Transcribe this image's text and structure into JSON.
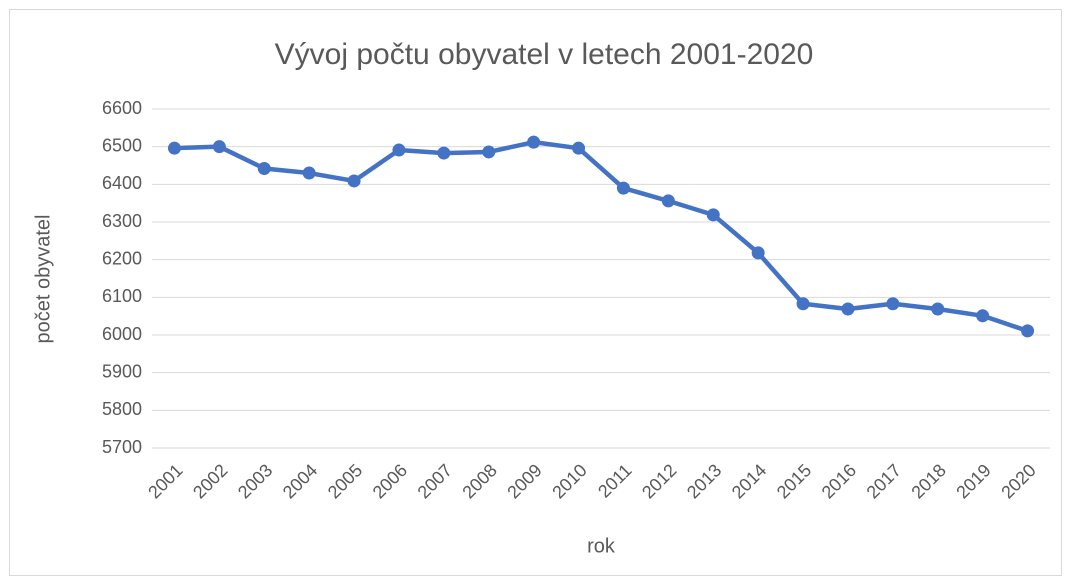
{
  "chart_data": {
    "type": "line",
    "title": "Vývoj počtu obyvatel v letech 2001-2020",
    "x_label": "rok",
    "y_label": "počet obyvatel",
    "categories": [
      "2001",
      "2002",
      "2003",
      "2004",
      "2005",
      "2006",
      "2007",
      "2008",
      "2009",
      "2010",
      "2011",
      "2012",
      "2013",
      "2014",
      "2015",
      "2016",
      "2017",
      "2018",
      "2019",
      "2020"
    ],
    "series": [
      {
        "name": "počet obyvatel",
        "color": "#4472c4",
        "values": [
          6496,
          6500,
          6442,
          6430,
          6409,
          6491,
          6483,
          6486,
          6512,
          6496,
          6390,
          6356,
          6319,
          6218,
          6083,
          6069,
          6083,
          6069,
          6051,
          6011
        ]
      }
    ],
    "ylim": [
      5700,
      6600
    ],
    "yticks": [
      5700,
      5800,
      5900,
      6000,
      6100,
      6200,
      6300,
      6400,
      6500,
      6600
    ],
    "grid": true
  }
}
